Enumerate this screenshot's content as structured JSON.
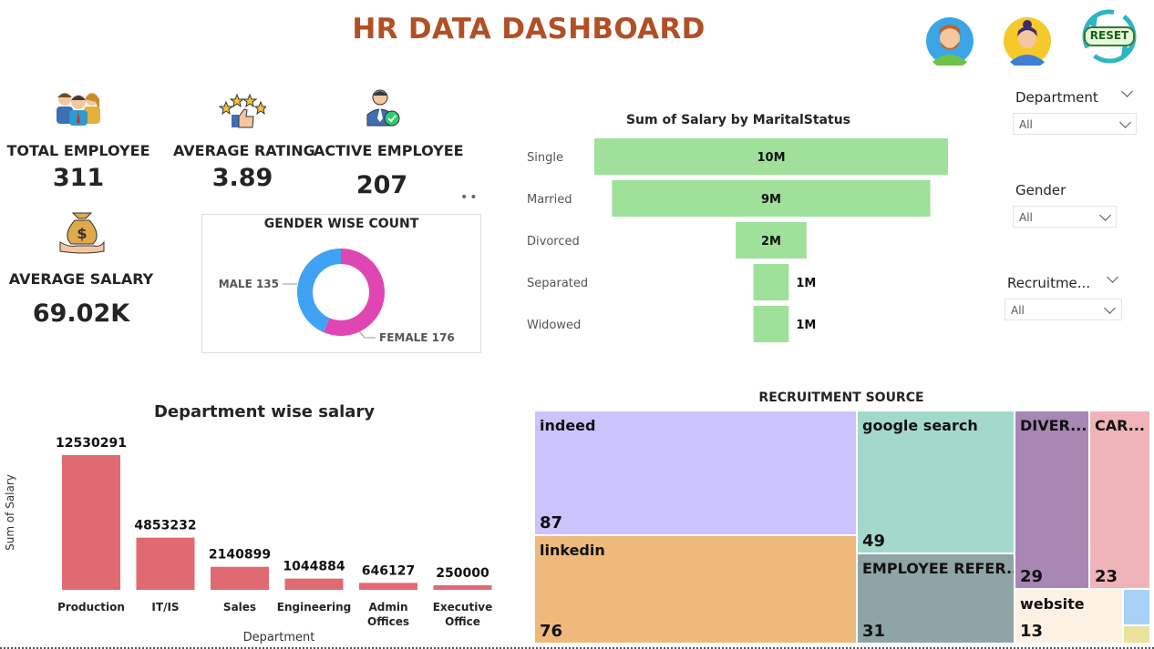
{
  "header": {
    "title": "HR DATA DASHBOARD",
    "reset_label": "RESET"
  },
  "kpis": {
    "total_employee": {
      "label": "TOTAL EMPLOYEE",
      "value": "311"
    },
    "average_rating": {
      "label": "AVERAGE RATING",
      "value": "3.89"
    },
    "active_employee": {
      "label": "ACTIVE EMPLOYEE",
      "value": "207"
    },
    "average_salary": {
      "label": "AVERAGE SALARY",
      "value": "69.02K"
    }
  },
  "slicers": {
    "department": {
      "title": "Department",
      "value": "All"
    },
    "gender": {
      "title": "Gender",
      "value": "All"
    },
    "recruitment": {
      "title": "Recruitme...",
      "value": "All"
    }
  },
  "colors": {
    "title": "#b24f24",
    "male": "#3fa2f2",
    "female": "#e046b3",
    "funnel": "#9fe09a",
    "bars": "#e06a72"
  },
  "chart_data": [
    {
      "type": "pie",
      "title": "GENDER WISE COUNT",
      "categories": [
        "MALE",
        "FEMALE"
      ],
      "values": [
        135,
        176
      ],
      "data_labels": [
        "MALE 135",
        "FEMALE 176"
      ]
    },
    {
      "type": "bar",
      "orientation": "horizontal-funnel",
      "title": "Sum of Salary by MaritalStatus",
      "categories": [
        "Single",
        "Married",
        "Divorced",
        "Separated",
        "Widowed"
      ],
      "values": [
        10000000,
        9000000,
        2000000,
        1000000,
        1000000
      ],
      "data_labels": [
        "10M",
        "9M",
        "2M",
        "1M",
        "1M"
      ]
    },
    {
      "type": "bar",
      "title": "Department wise salary",
      "xlabel": "Department",
      "ylabel": "Sum of Salary",
      "categories": [
        "Production",
        "IT/IS",
        "Sales",
        "Engineering",
        "Admin Offices",
        "Executive Office"
      ],
      "values": [
        12530291,
        4853232,
        2140899,
        1044884,
        646127,
        250000
      ]
    },
    {
      "type": "table",
      "subtype": "treemap",
      "title": "RECRUITMENT SOURCE",
      "cells": [
        {
          "name": "indeed",
          "value": "87",
          "color": "#cbc3fb"
        },
        {
          "name": "linkedin",
          "value": "76",
          "color": "#eeb97a"
        },
        {
          "name": "google search",
          "value": "49",
          "color": "#a3d9cc"
        },
        {
          "name": "EMPLOYEE REFER...",
          "value": "31",
          "color": "#8fa4a6"
        },
        {
          "name": "DIVER...",
          "value": "29",
          "color": "#a887b5"
        },
        {
          "name": "CAR...",
          "value": "23",
          "color": "#f0b4b8"
        },
        {
          "name": "website",
          "value": "13",
          "color": "#fdf1e4"
        },
        {
          "name": "",
          "value": "",
          "color": "#a8d2f5"
        },
        {
          "name": "",
          "value": "",
          "color": "#ebe29b"
        }
      ]
    }
  ]
}
